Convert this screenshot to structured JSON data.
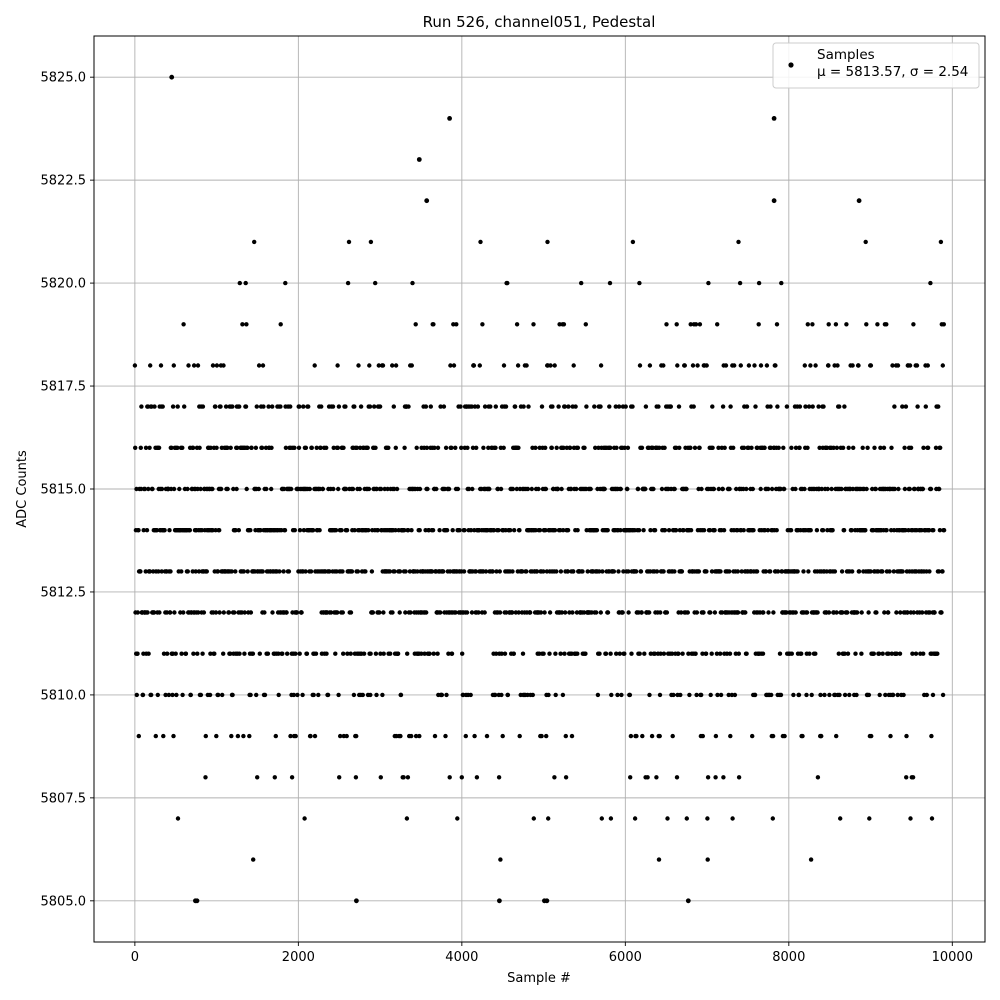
{
  "chart_data": {
    "type": "scatter",
    "title": "Run 526, channel051, Pedestal",
    "xlabel": "Sample #",
    "ylabel": "ADC Counts",
    "xlim": [
      -500,
      10400
    ],
    "ylim": [
      5804.0,
      5826.0
    ],
    "x_ticks": [
      0,
      2000,
      4000,
      6000,
      8000,
      10000
    ],
    "y_ticks": [
      5805.0,
      5807.5,
      5810.0,
      5812.5,
      5815.0,
      5817.5,
      5820.0,
      5822.5,
      5825.0
    ],
    "x_tick_labels": [
      "0",
      "2000",
      "4000",
      "6000",
      "8000",
      "10000"
    ],
    "y_tick_labels": [
      "5805.0",
      "5807.5",
      "5810.0",
      "5812.5",
      "5815.0",
      "5817.5",
      "5820.0",
      "5822.5",
      "5825.0"
    ],
    "grid": true,
    "legend_position": "upper right",
    "marker_color": "#000000",
    "series": [
      {
        "name": "Samples",
        "stats_label": "μ = 5813.57, σ = 2.54",
        "mu": 5813.57,
        "sigma": 2.54,
        "n_samples": 10000,
        "x_range": [
          0,
          9900
        ],
        "integer_values": true,
        "outliers": [
          {
            "x": 450,
            "y": 5825
          },
          {
            "x": 3850,
            "y": 5824
          },
          {
            "x": 7820,
            "y": 5824
          },
          {
            "x": 3480,
            "y": 5823
          },
          {
            "x": 3570,
            "y": 5822
          },
          {
            "x": 7820,
            "y": 5822
          },
          {
            "x": 8860,
            "y": 5822
          },
          {
            "x": 740,
            "y": 5805
          },
          {
            "x": 760,
            "y": 5805
          },
          {
            "x": 2710,
            "y": 5805
          },
          {
            "x": 4460,
            "y": 5805
          },
          {
            "x": 5010,
            "y": 5805
          },
          {
            "x": 5040,
            "y": 5805
          },
          {
            "x": 6770,
            "y": 5805
          }
        ]
      }
    ]
  }
}
